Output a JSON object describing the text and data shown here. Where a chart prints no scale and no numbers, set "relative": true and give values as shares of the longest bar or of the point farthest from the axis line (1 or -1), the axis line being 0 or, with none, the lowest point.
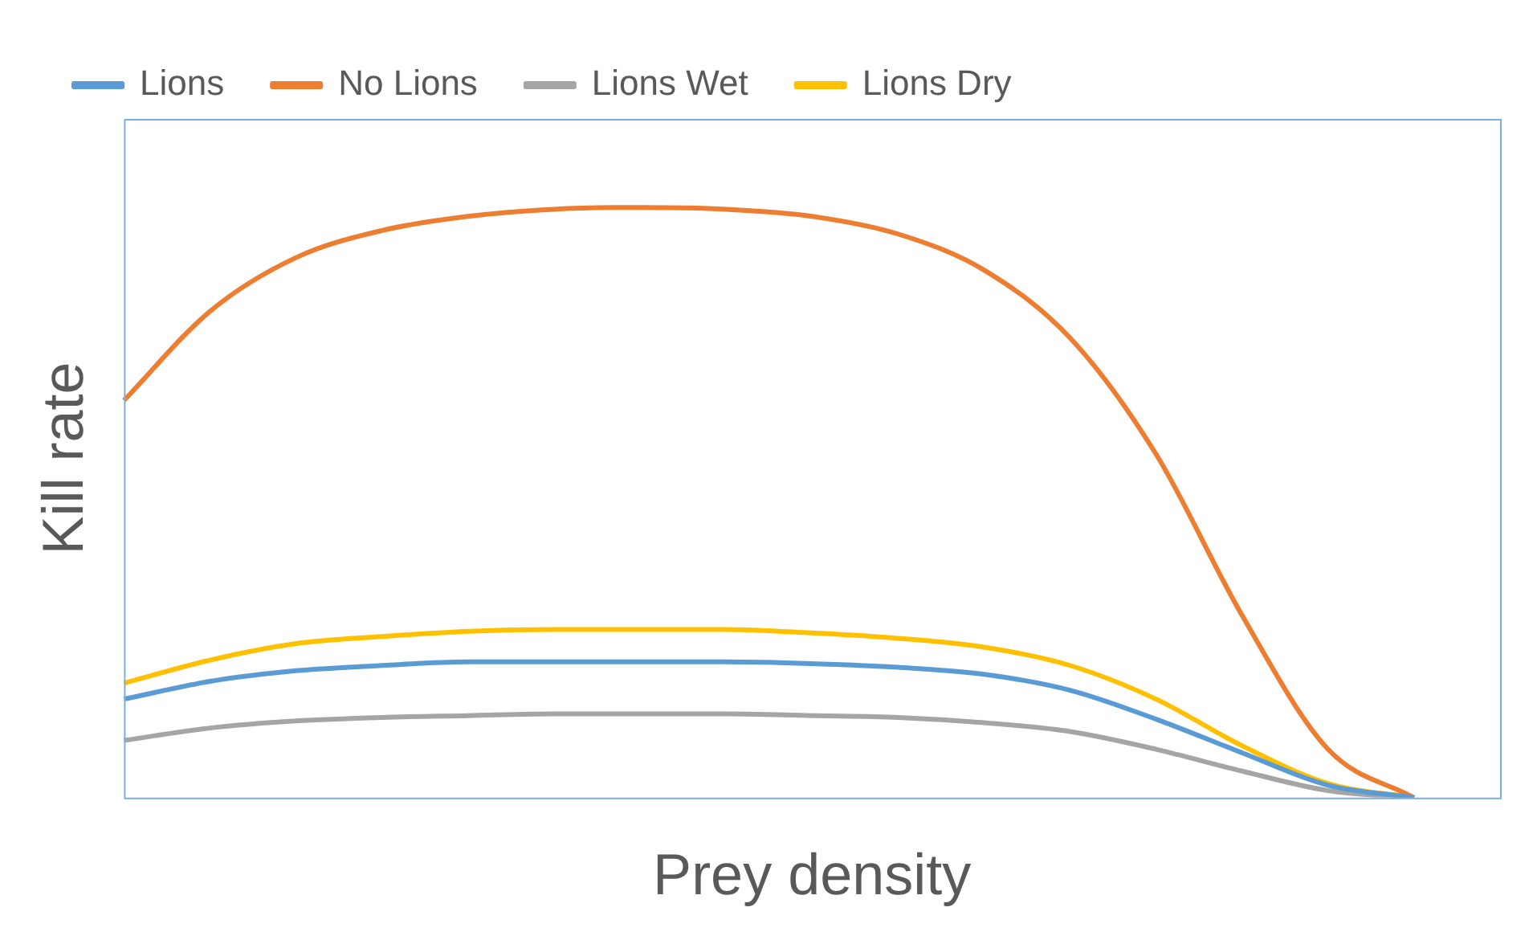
{
  "chart_data": {
    "type": "line",
    "xlabel": "Prey density",
    "ylabel": "Kill rate",
    "relative": true,
    "legend": "top",
    "grid": false,
    "marker": "none",
    "categories": [
      null,
      null,
      null,
      null,
      null,
      null,
      null,
      null,
      null,
      null,
      null,
      null,
      null,
      null,
      null,
      null,
      null
    ],
    "series": [
      {
        "name": "Lions",
        "color": "#5b9bd5",
        "values": [
          0.167,
          0.197,
          0.215,
          0.224,
          0.23,
          0.23,
          0.23,
          0.23,
          0.227,
          0.221,
          0.209,
          0.182,
          0.133,
          0.076,
          0.021,
          0,
          null
        ]
      },
      {
        "name": "No Lions",
        "color": "#ed7d31",
        "values": [
          0.673,
          0.824,
          0.915,
          0.961,
          0.985,
          0.997,
          1,
          0.997,
          0.985,
          0.955,
          0.894,
          0.779,
          0.582,
          0.309,
          0.082,
          0,
          null
        ]
      },
      {
        "name": "Lions Wet",
        "color": "#a5a5a5",
        "values": [
          0.097,
          0.118,
          0.13,
          0.136,
          0.139,
          0.142,
          0.142,
          0.142,
          0.139,
          0.136,
          0.127,
          0.112,
          0.082,
          0.045,
          0.012,
          0,
          null
        ]
      },
      {
        "name": "Lions Dry",
        "color": "#ffc000",
        "values": [
          0.194,
          0.233,
          0.261,
          0.273,
          0.282,
          0.285,
          0.285,
          0.285,
          0.279,
          0.27,
          0.255,
          0.224,
          0.167,
          0.088,
          0.024,
          0,
          null
        ]
      }
    ]
  }
}
